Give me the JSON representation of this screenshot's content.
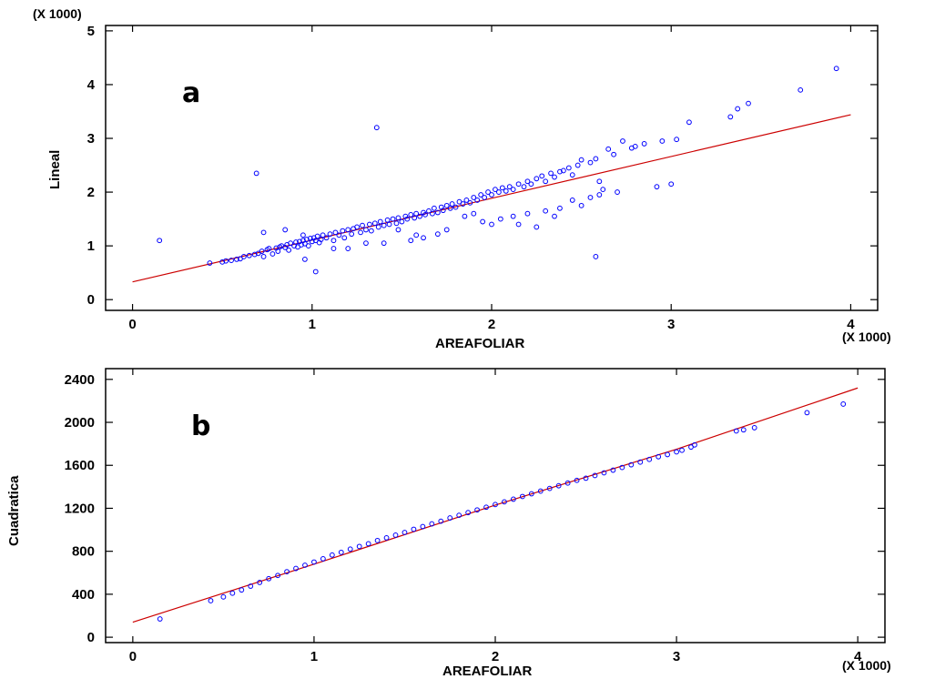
{
  "colors": {
    "points": "#0000ff",
    "fit_line": "#cc0000",
    "axes": "#000000"
  },
  "chart_data": [
    {
      "type": "scatter",
      "panel_label": "a",
      "xlabel": "AREAFOLIAR",
      "ylabel": "Lineal",
      "x_multiplier": "(X 1000)",
      "y_multiplier": "(X 1000)",
      "xlim": [
        -0.15,
        4.15
      ],
      "ylim": [
        -0.2,
        5.1
      ],
      "xticks": [
        0,
        1,
        2,
        3,
        4
      ],
      "xtick_labels": [
        "0",
        "1",
        "2",
        "3",
        "4"
      ],
      "yticks": [
        0,
        1,
        2,
        3,
        4,
        5
      ],
      "ytick_labels": [
        "0",
        "1",
        "2",
        "3",
        "4",
        "5"
      ],
      "grid": false,
      "fit_line": {
        "x": [
          0.0,
          4.0
        ],
        "y": [
          0.33,
          3.44
        ]
      },
      "series": [
        {
          "marker": "open-circle",
          "x": [
            0.15,
            0.43,
            0.5,
            0.52,
            0.55,
            0.58,
            0.6,
            0.62,
            0.65,
            0.68,
            0.7,
            0.72,
            0.73,
            0.75,
            0.76,
            0.78,
            0.8,
            0.81,
            0.82,
            0.83,
            0.85,
            0.86,
            0.87,
            0.88,
            0.9,
            0.91,
            0.92,
            0.93,
            0.94,
            0.95,
            0.96,
            0.97,
            0.98,
            0.99,
            1.0,
            1.01,
            1.02,
            1.03,
            1.04,
            1.05,
            1.06,
            1.08,
            1.1,
            1.12,
            1.13,
            1.15,
            1.17,
            1.18,
            1.2,
            1.22,
            1.23,
            1.25,
            1.27,
            1.28,
            1.3,
            1.32,
            1.33,
            1.35,
            1.37,
            1.38,
            1.4,
            1.42,
            1.43,
            1.45,
            1.47,
            1.48,
            1.5,
            1.52,
            1.53,
            1.55,
            1.57,
            1.58,
            1.6,
            1.62,
            1.63,
            1.65,
            1.67,
            1.68,
            1.7,
            1.72,
            1.73,
            1.75,
            1.77,
            1.78,
            1.8,
            1.82,
            1.84,
            1.86,
            1.88,
            1.9,
            1.92,
            1.94,
            1.96,
            1.98,
            2.0,
            2.02,
            2.04,
            2.06,
            2.08,
            2.1,
            2.12,
            2.15,
            2.18,
            2.2,
            2.22,
            2.25,
            2.28,
            2.3,
            2.33,
            2.35,
            2.38,
            2.4,
            2.43,
            2.45,
            2.48,
            2.5,
            2.55,
            2.58,
            2.6,
            2.65,
            2.68,
            2.73,
            2.78,
            2.8,
            2.85,
            2.95,
            3.0,
            3.03,
            3.1,
            3.33,
            3.37,
            3.43,
            3.72,
            3.92,
            0.69,
            1.36,
            0.85,
            1.02,
            0.96,
            0.73,
            1.58,
            1.75,
            1.95,
            2.05,
            2.2,
            2.35,
            2.58,
            0.95,
            1.2,
            1.3,
            1.55,
            1.7,
            2.15,
            2.25,
            2.5,
            2.55,
            2.6,
            1.48,
            1.62,
            1.85,
            2.0,
            2.45,
            1.12,
            1.4,
            1.9,
            2.12,
            2.3,
            2.38,
            2.62,
            2.7,
            2.92
          ],
          "y": [
            1.1,
            0.68,
            0.7,
            0.72,
            0.73,
            0.75,
            0.76,
            0.8,
            0.82,
            0.84,
            0.86,
            0.9,
            0.8,
            0.93,
            0.95,
            0.85,
            0.96,
            0.9,
            0.98,
            1.0,
            0.97,
            1.02,
            0.92,
            1.05,
            1.0,
            1.07,
            0.98,
            1.08,
            1.02,
            1.1,
            1.04,
            1.12,
            1.0,
            1.14,
            1.08,
            1.15,
            1.1,
            1.18,
            1.06,
            1.12,
            1.2,
            1.15,
            1.22,
            1.1,
            1.25,
            1.2,
            1.28,
            1.15,
            1.3,
            1.22,
            1.32,
            1.35,
            1.25,
            1.38,
            1.3,
            1.4,
            1.28,
            1.42,
            1.35,
            1.45,
            1.38,
            1.48,
            1.4,
            1.5,
            1.42,
            1.52,
            1.45,
            1.55,
            1.5,
            1.58,
            1.52,
            1.6,
            1.55,
            1.62,
            1.58,
            1.65,
            1.6,
            1.7,
            1.62,
            1.72,
            1.66,
            1.75,
            1.7,
            1.78,
            1.72,
            1.82,
            1.78,
            1.85,
            1.8,
            1.9,
            1.85,
            1.95,
            1.9,
            2.0,
            1.95,
            2.05,
            2.0,
            2.08,
            2.02,
            2.1,
            2.05,
            2.15,
            2.1,
            2.2,
            2.15,
            2.25,
            2.3,
            2.2,
            2.35,
            2.28,
            2.38,
            2.4,
            2.45,
            2.32,
            2.5,
            2.6,
            2.55,
            2.62,
            2.2,
            2.8,
            2.7,
            2.95,
            2.82,
            2.85,
            2.9,
            2.95,
            2.15,
            2.98,
            3.3,
            3.4,
            3.55,
            3.65,
            3.9,
            4.3,
            2.35,
            3.2,
            1.3,
            0.52,
            0.75,
            1.25,
            1.2,
            1.3,
            1.45,
            1.5,
            1.6,
            1.55,
            0.8,
            1.2,
            0.95,
            1.05,
            1.1,
            1.22,
            1.4,
            1.35,
            1.75,
            1.9,
            1.95,
            1.3,
            1.15,
            1.55,
            1.4,
            1.85,
            0.95,
            1.05,
            1.6,
            1.55,
            1.65,
            1.7,
            2.05,
            2.0,
            2.1
          ]
        }
      ]
    },
    {
      "type": "scatter",
      "panel_label": "b",
      "xlabel": "AREAFOLIAR",
      "ylabel": "Cuadratica",
      "x_multiplier": "(X 1000)",
      "xlim": [
        -0.15,
        4.15
      ],
      "ylim": [
        -50,
        2500
      ],
      "xticks": [
        0,
        1,
        2,
        3,
        4
      ],
      "xtick_labels": [
        "0",
        "1",
        "2",
        "3",
        "4"
      ],
      "yticks": [
        0,
        400,
        800,
        1200,
        1600,
        2000,
        2400
      ],
      "ytick_labels": [
        "0",
        "400",
        "800",
        "1200",
        "1600",
        "2000",
        "2400"
      ],
      "grid": false,
      "fit_line": {
        "x": [
          0.0,
          1.0,
          2.0,
          3.0,
          4.0
        ],
        "y": [
          140,
          680,
          1230,
          1750,
          2320
        ]
      },
      "series": [
        {
          "marker": "open-circle",
          "x": [
            0.15,
            0.43,
            0.5,
            0.55,
            0.6,
            0.65,
            0.7,
            0.75,
            0.8,
            0.85,
            0.9,
            0.95,
            1.0,
            1.05,
            1.1,
            1.15,
            1.2,
            1.25,
            1.3,
            1.35,
            1.4,
            1.45,
            1.5,
            1.55,
            1.6,
            1.65,
            1.7,
            1.75,
            1.8,
            1.85,
            1.9,
            1.95,
            2.0,
            2.05,
            2.1,
            2.15,
            2.2,
            2.25,
            2.3,
            2.35,
            2.4,
            2.45,
            2.5,
            2.55,
            2.6,
            2.65,
            2.7,
            2.75,
            2.8,
            2.85,
            2.9,
            2.95,
            3.0,
            3.03,
            3.08,
            3.1,
            3.33,
            3.37,
            3.43,
            3.72,
            3.92
          ],
          "y": [
            170,
            340,
            375,
            410,
            440,
            475,
            510,
            545,
            575,
            610,
            640,
            670,
            700,
            730,
            765,
            790,
            820,
            845,
            870,
            900,
            925,
            950,
            975,
            1005,
            1030,
            1055,
            1080,
            1110,
            1135,
            1160,
            1185,
            1210,
            1235,
            1260,
            1285,
            1310,
            1335,
            1360,
            1385,
            1410,
            1435,
            1460,
            1480,
            1505,
            1530,
            1555,
            1580,
            1605,
            1630,
            1655,
            1680,
            1700,
            1725,
            1740,
            1770,
            1790,
            1920,
            1930,
            1950,
            2090,
            2170
          ]
        }
      ]
    }
  ]
}
